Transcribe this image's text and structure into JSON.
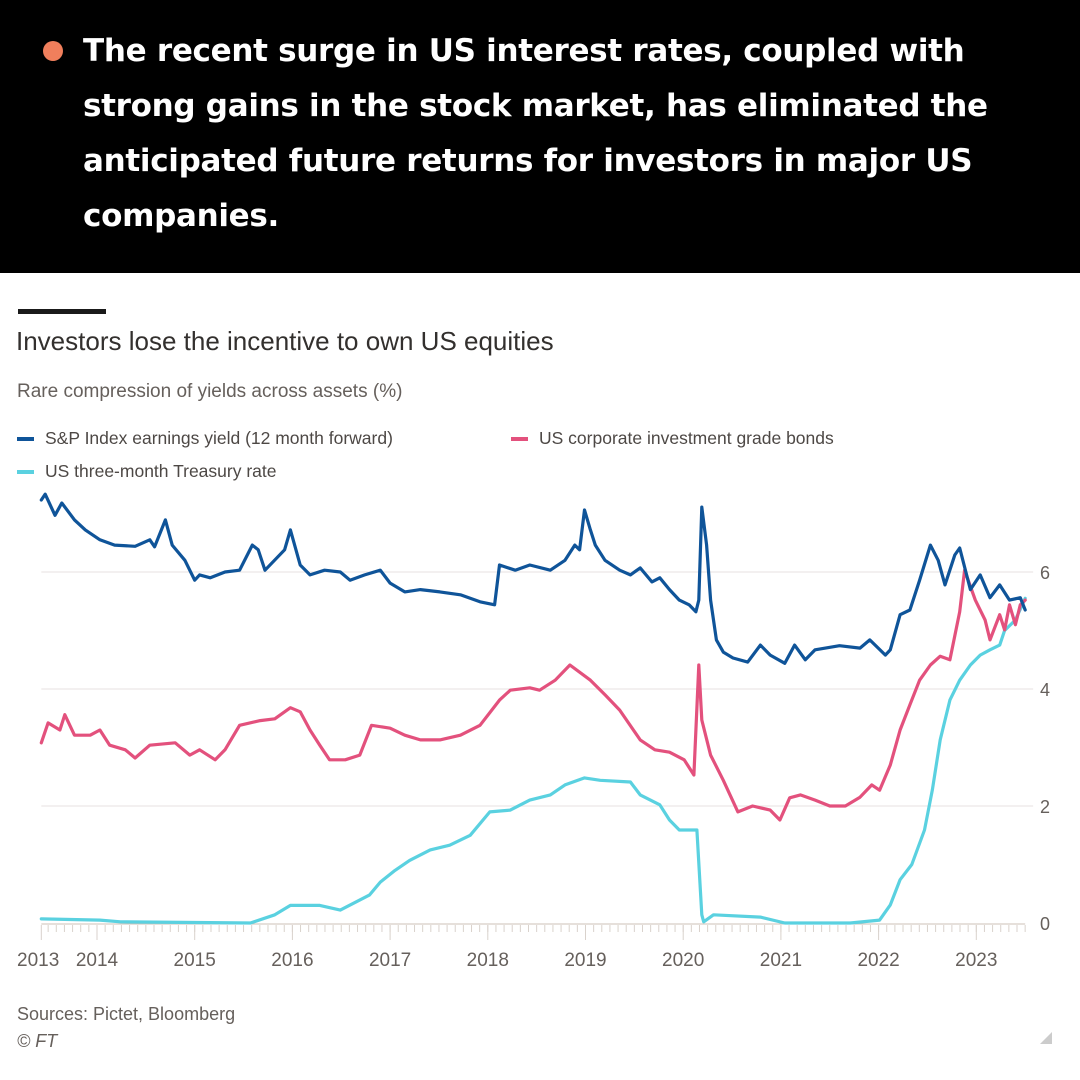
{
  "banner": {
    "bullet_color": "#f07f5c",
    "headline": "The recent surge in US interest rates, coupled with strong gains in the stock market, has eliminated the anticipated future returns for investors in major US companies."
  },
  "chart_data": {
    "type": "line",
    "title": "Investors lose the incentive to own US equities",
    "subtitle": "Rare compression of yields across assets (%)",
    "xlim": [
      2013.43,
      2023.5
    ],
    "ylim": [
      0,
      7.5
    ],
    "y_ticks": [
      0,
      2,
      4,
      6
    ],
    "x_ticks": [
      {
        "label": "2013",
        "x": 2013.43
      },
      {
        "label": "2014",
        "x": 2014
      },
      {
        "label": "2015",
        "x": 2015
      },
      {
        "label": "2016",
        "x": 2016
      },
      {
        "label": "2017",
        "x": 2017
      },
      {
        "label": "2018",
        "x": 2018
      },
      {
        "label": "2019",
        "x": 2019
      },
      {
        "label": "2020",
        "x": 2020
      },
      {
        "label": "2021",
        "x": 2021
      },
      {
        "label": "2022",
        "x": 2022
      },
      {
        "label": "2023",
        "x": 2023
      }
    ],
    "y_axis_position": "right",
    "grid": true,
    "legend_position": "top",
    "series": [
      {
        "name": "S&P Index earnings yield (12 month forward)",
        "color": "#0f5499",
        "points": [
          [
            2013.43,
            7.23
          ],
          [
            2013.47,
            7.33
          ],
          [
            2013.57,
            6.97
          ],
          [
            2013.64,
            7.18
          ],
          [
            2013.77,
            6.89
          ],
          [
            2013.88,
            6.72
          ],
          [
            2014.03,
            6.55
          ],
          [
            2014.18,
            6.46
          ],
          [
            2014.39,
            6.44
          ],
          [
            2014.54,
            6.55
          ],
          [
            2014.59,
            6.43
          ],
          [
            2014.7,
            6.89
          ],
          [
            2014.77,
            6.46
          ],
          [
            2014.9,
            6.2
          ],
          [
            2015.0,
            5.86
          ],
          [
            2015.05,
            5.95
          ],
          [
            2015.16,
            5.9
          ],
          [
            2015.31,
            6.0
          ],
          [
            2015.46,
            6.03
          ],
          [
            2015.59,
            6.46
          ],
          [
            2015.65,
            6.38
          ],
          [
            2015.72,
            6.03
          ],
          [
            2015.92,
            6.38
          ],
          [
            2015.98,
            6.72
          ],
          [
            2016.08,
            6.12
          ],
          [
            2016.18,
            5.95
          ],
          [
            2016.33,
            6.03
          ],
          [
            2016.49,
            6.0
          ],
          [
            2016.59,
            5.86
          ],
          [
            2016.74,
            5.95
          ],
          [
            2016.9,
            6.03
          ],
          [
            2017.0,
            5.81
          ],
          [
            2017.15,
            5.66
          ],
          [
            2017.31,
            5.7
          ],
          [
            2017.51,
            5.66
          ],
          [
            2017.72,
            5.61
          ],
          [
            2017.92,
            5.49
          ],
          [
            2018.07,
            5.44
          ],
          [
            2018.12,
            6.12
          ],
          [
            2018.28,
            6.03
          ],
          [
            2018.43,
            6.12
          ],
          [
            2018.64,
            6.03
          ],
          [
            2018.79,
            6.2
          ],
          [
            2018.89,
            6.46
          ],
          [
            2018.94,
            6.38
          ],
          [
            2018.99,
            7.06
          ],
          [
            2019.05,
            6.72
          ],
          [
            2019.1,
            6.46
          ],
          [
            2019.2,
            6.2
          ],
          [
            2019.35,
            6.03
          ],
          [
            2019.46,
            5.95
          ],
          [
            2019.56,
            6.07
          ],
          [
            2019.68,
            5.83
          ],
          [
            2019.76,
            5.9
          ],
          [
            2019.86,
            5.7
          ],
          [
            2019.96,
            5.52
          ],
          [
            2020.06,
            5.44
          ],
          [
            2020.13,
            5.32
          ],
          [
            2020.16,
            5.52
          ],
          [
            2020.19,
            7.11
          ],
          [
            2020.24,
            6.46
          ],
          [
            2020.28,
            5.52
          ],
          [
            2020.34,
            4.84
          ],
          [
            2020.41,
            4.63
          ],
          [
            2020.51,
            4.53
          ],
          [
            2020.66,
            4.46
          ],
          [
            2020.79,
            4.75
          ],
          [
            2020.89,
            4.58
          ],
          [
            2021.04,
            4.44
          ],
          [
            2021.14,
            4.75
          ],
          [
            2021.25,
            4.5
          ],
          [
            2021.35,
            4.67
          ],
          [
            2021.6,
            4.74
          ],
          [
            2021.81,
            4.7
          ],
          [
            2021.91,
            4.84
          ],
          [
            2022.07,
            4.58
          ],
          [
            2022.12,
            4.67
          ],
          [
            2022.22,
            5.27
          ],
          [
            2022.32,
            5.35
          ],
          [
            2022.42,
            5.86
          ],
          [
            2022.53,
            6.46
          ],
          [
            2022.61,
            6.2
          ],
          [
            2022.68,
            5.78
          ],
          [
            2022.78,
            6.29
          ],
          [
            2022.83,
            6.41
          ],
          [
            2022.94,
            5.7
          ],
          [
            2023.04,
            5.95
          ],
          [
            2023.14,
            5.56
          ],
          [
            2023.24,
            5.78
          ],
          [
            2023.34,
            5.52
          ],
          [
            2023.45,
            5.56
          ],
          [
            2023.5,
            5.35
          ]
        ]
      },
      {
        "name": "US corporate investment grade bonds",
        "color": "#e3517d",
        "points": [
          [
            2013.43,
            3.08
          ],
          [
            2013.5,
            3.42
          ],
          [
            2013.62,
            3.3
          ],
          [
            2013.67,
            3.56
          ],
          [
            2013.77,
            3.21
          ],
          [
            2013.93,
            3.21
          ],
          [
            2014.03,
            3.3
          ],
          [
            2014.13,
            3.04
          ],
          [
            2014.29,
            2.96
          ],
          [
            2014.39,
            2.82
          ],
          [
            2014.54,
            3.04
          ],
          [
            2014.8,
            3.08
          ],
          [
            2014.95,
            2.87
          ],
          [
            2015.05,
            2.96
          ],
          [
            2015.21,
            2.79
          ],
          [
            2015.31,
            2.96
          ],
          [
            2015.46,
            3.38
          ],
          [
            2015.67,
            3.46
          ],
          [
            2015.82,
            3.49
          ],
          [
            2015.98,
            3.68
          ],
          [
            2016.08,
            3.61
          ],
          [
            2016.18,
            3.3
          ],
          [
            2016.28,
            3.04
          ],
          [
            2016.38,
            2.79
          ],
          [
            2016.54,
            2.79
          ],
          [
            2016.69,
            2.87
          ],
          [
            2016.81,
            3.38
          ],
          [
            2017.0,
            3.33
          ],
          [
            2017.15,
            3.21
          ],
          [
            2017.31,
            3.13
          ],
          [
            2017.51,
            3.13
          ],
          [
            2017.72,
            3.21
          ],
          [
            2017.92,
            3.38
          ],
          [
            2018.12,
            3.81
          ],
          [
            2018.23,
            3.98
          ],
          [
            2018.43,
            4.02
          ],
          [
            2018.53,
            3.98
          ],
          [
            2018.69,
            4.15
          ],
          [
            2018.84,
            4.41
          ],
          [
            2019.05,
            4.15
          ],
          [
            2019.2,
            3.9
          ],
          [
            2019.35,
            3.64
          ],
          [
            2019.56,
            3.13
          ],
          [
            2019.71,
            2.96
          ],
          [
            2019.86,
            2.92
          ],
          [
            2020.01,
            2.79
          ],
          [
            2020.11,
            2.53
          ],
          [
            2020.16,
            4.41
          ],
          [
            2020.19,
            3.47
          ],
          [
            2020.28,
            2.87
          ],
          [
            2020.41,
            2.44
          ],
          [
            2020.56,
            1.9
          ],
          [
            2020.71,
            2.0
          ],
          [
            2020.89,
            1.93
          ],
          [
            2020.99,
            1.76
          ],
          [
            2021.09,
            2.14
          ],
          [
            2021.2,
            2.19
          ],
          [
            2021.35,
            2.1
          ],
          [
            2021.5,
            2.0
          ],
          [
            2021.66,
            2.0
          ],
          [
            2021.81,
            2.15
          ],
          [
            2021.93,
            2.36
          ],
          [
            2022.01,
            2.27
          ],
          [
            2022.12,
            2.7
          ],
          [
            2022.22,
            3.3
          ],
          [
            2022.32,
            3.73
          ],
          [
            2022.42,
            4.15
          ],
          [
            2022.53,
            4.41
          ],
          [
            2022.63,
            4.56
          ],
          [
            2022.73,
            4.5
          ],
          [
            2022.83,
            5.32
          ],
          [
            2022.88,
            6.03
          ],
          [
            2022.99,
            5.52
          ],
          [
            2023.09,
            5.18
          ],
          [
            2023.14,
            4.84
          ],
          [
            2023.24,
            5.27
          ],
          [
            2023.29,
            5.01
          ],
          [
            2023.34,
            5.44
          ],
          [
            2023.4,
            5.1
          ],
          [
            2023.45,
            5.44
          ],
          [
            2023.5,
            5.52
          ]
        ]
      },
      {
        "name": "US three-month Treasury rate",
        "color": "#5ad1e0",
        "points": [
          [
            2013.43,
            0.07
          ],
          [
            2014.03,
            0.05
          ],
          [
            2014.24,
            0.02
          ],
          [
            2015.57,
            0.0
          ],
          [
            2015.82,
            0.14
          ],
          [
            2015.98,
            0.3
          ],
          [
            2016.28,
            0.3
          ],
          [
            2016.49,
            0.22
          ],
          [
            2016.79,
            0.48
          ],
          [
            2016.9,
            0.7
          ],
          [
            2017.05,
            0.9
          ],
          [
            2017.2,
            1.07
          ],
          [
            2017.41,
            1.25
          ],
          [
            2017.61,
            1.33
          ],
          [
            2017.82,
            1.5
          ],
          [
            2018.02,
            1.9
          ],
          [
            2018.23,
            1.93
          ],
          [
            2018.43,
            2.1
          ],
          [
            2018.64,
            2.19
          ],
          [
            2018.79,
            2.36
          ],
          [
            2018.99,
            2.48
          ],
          [
            2019.15,
            2.44
          ],
          [
            2019.46,
            2.41
          ],
          [
            2019.56,
            2.19
          ],
          [
            2019.76,
            2.02
          ],
          [
            2019.86,
            1.76
          ],
          [
            2019.96,
            1.59
          ],
          [
            2020.14,
            1.59
          ],
          [
            2020.19,
            0.14
          ],
          [
            2020.21,
            0.02
          ],
          [
            2020.31,
            0.14
          ],
          [
            2020.79,
            0.1
          ],
          [
            2021.04,
            0.0
          ],
          [
            2021.71,
            0.0
          ],
          [
            2022.01,
            0.05
          ],
          [
            2022.12,
            0.31
          ],
          [
            2022.22,
            0.74
          ],
          [
            2022.34,
            1.0
          ],
          [
            2022.47,
            1.59
          ],
          [
            2022.55,
            2.27
          ],
          [
            2022.63,
            3.13
          ],
          [
            2022.73,
            3.81
          ],
          [
            2022.83,
            4.15
          ],
          [
            2022.94,
            4.41
          ],
          [
            2023.04,
            4.58
          ],
          [
            2023.14,
            4.67
          ],
          [
            2023.24,
            4.75
          ],
          [
            2023.29,
            5.0
          ],
          [
            2023.4,
            5.18
          ],
          [
            2023.5,
            5.55
          ]
        ]
      }
    ]
  },
  "footer": {
    "sources": "Sources: Pictet, Bloomberg",
    "copyright": "© FT"
  }
}
